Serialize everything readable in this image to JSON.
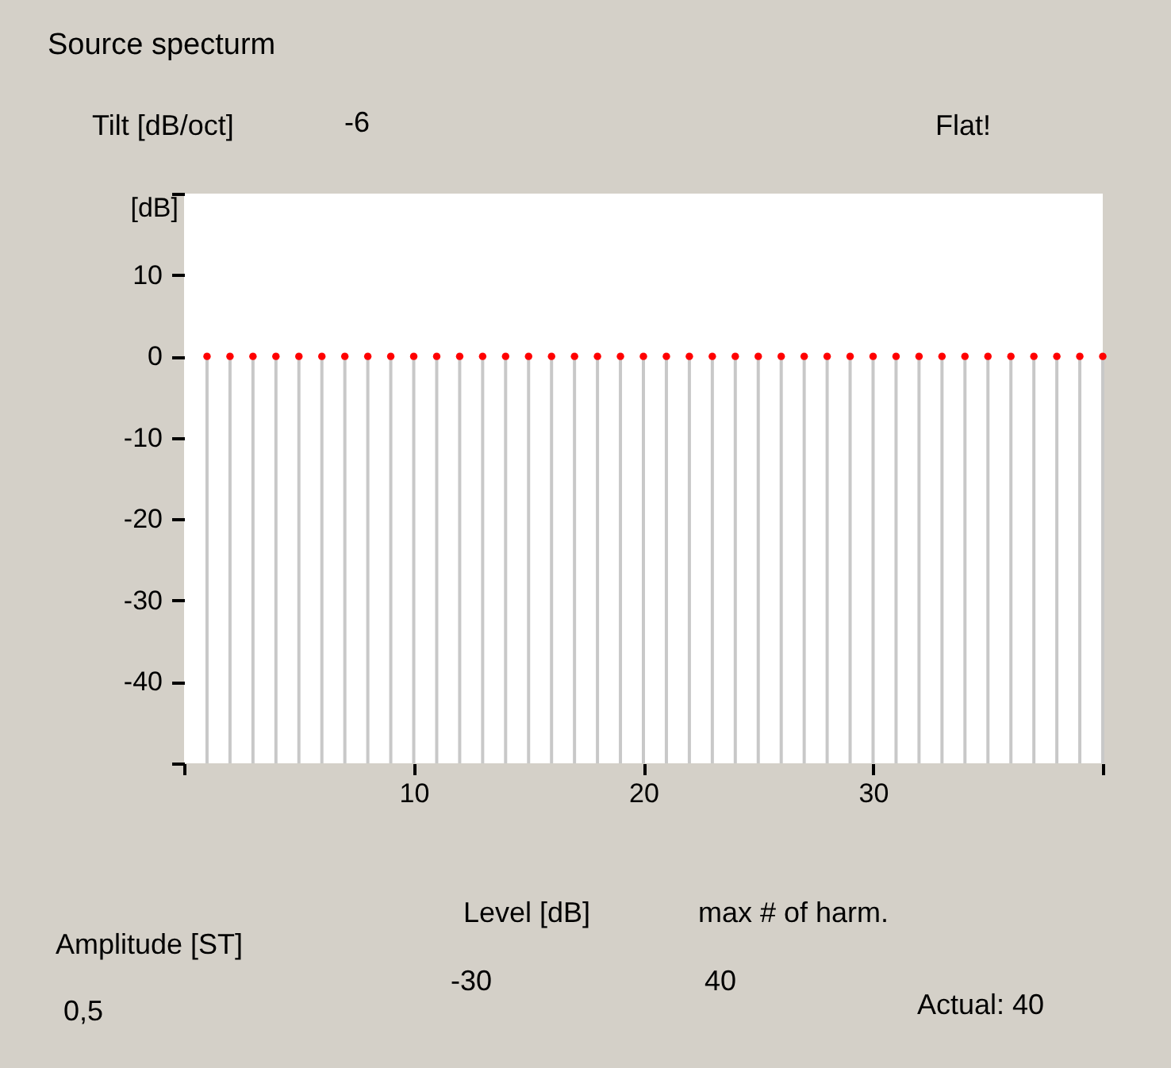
{
  "chart_data": {
    "type": "bar",
    "title": "Source specturm",
    "ylabel": "[dB]",
    "x": [
      1,
      2,
      3,
      4,
      5,
      6,
      7,
      8,
      9,
      10,
      11,
      12,
      13,
      14,
      15,
      16,
      17,
      18,
      19,
      20,
      21,
      22,
      23,
      24,
      25,
      26,
      27,
      28,
      29,
      30,
      31,
      32,
      33,
      34,
      35,
      36,
      37,
      38,
      39,
      40
    ],
    "series": [
      {
        "color": "#c8c8c8",
        "base": [
          -50,
          -50,
          -50,
          -50,
          -50,
          -50,
          -50,
          -50,
          -50,
          -50,
          -50,
          -50,
          -50,
          -50,
          -50,
          -50,
          -50,
          -50,
          -50,
          -50,
          -50,
          -50,
          -50,
          -50,
          -50,
          -50,
          -50,
          -50,
          -50,
          -50,
          -50,
          -50,
          -50,
          -50,
          -50,
          -50,
          -50,
          -50,
          -50,
          -50
        ],
        "values": [
          50,
          50,
          50,
          50,
          50,
          50,
          50,
          50,
          50,
          50,
          50,
          50,
          50,
          50,
          50,
          50,
          50,
          50,
          50,
          50,
          50,
          50,
          50,
          50,
          50,
          50,
          50,
          50,
          50,
          50,
          50,
          50,
          50,
          50,
          50,
          50,
          50,
          50,
          50,
          50
        ]
      },
      {
        "type": "scatter",
        "color": "#ff0000",
        "values": [
          0,
          0,
          0,
          0,
          0,
          0,
          0,
          0,
          0,
          0,
          0,
          0,
          0,
          0,
          0,
          0,
          0,
          0,
          0,
          0,
          0,
          0,
          0,
          0,
          0,
          0,
          0,
          0,
          0,
          0,
          0,
          0,
          0,
          0,
          0,
          0,
          0,
          0,
          0,
          0
        ]
      }
    ],
    "xlim": [
      0,
      40
    ],
    "xticks": [
      {
        "value": 0,
        "label": null
      },
      10,
      20,
      30,
      {
        "value": 40,
        "label": null
      }
    ],
    "ylim": [
      -50,
      20
    ],
    "yticks": [
      {
        "value": -50,
        "label": null
      },
      -40,
      -30,
      -20,
      -10,
      0,
      10,
      {
        "value": 20,
        "label": null
      }
    ],
    "marker": "circle",
    "grid": false,
    "annotations": [
      "Tilt [dB/oct]",
      "-6",
      "Flat!",
      "Amplitude [ST]",
      "0,5",
      "Level [dB]",
      "-30",
      "max # of harm.",
      "40",
      "Actual: 40"
    ]
  }
}
